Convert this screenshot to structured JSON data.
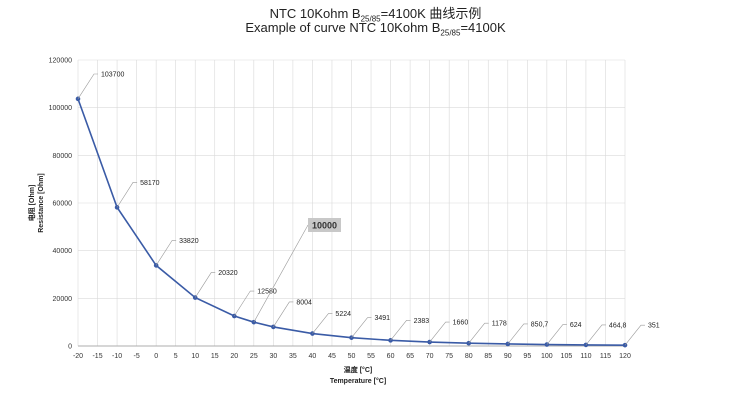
{
  "title": {
    "line1_prefix": "NTC 10Kohm B",
    "line1_sub": "25/85",
    "line1_suffix": "=4100K 曲线示例",
    "line2_prefix": "Example of curve NTC 10Kohm B",
    "line2_sub": "25/85",
    "line2_suffix": "=4100K"
  },
  "chart_data": {
    "type": "line",
    "xlabel_cn": "温度 [°C]",
    "xlabel": "Temperature [°C]",
    "ylabel_cn": "电阻 [Ohm]",
    "ylabel": "Resistance [Ohm]",
    "xlim": [
      -20,
      120
    ],
    "ylim": [
      0,
      120000
    ],
    "x_ticks": [
      -20,
      -15,
      -10,
      -5,
      0,
      5,
      10,
      15,
      20,
      25,
      30,
      35,
      40,
      45,
      50,
      55,
      60,
      65,
      70,
      75,
      80,
      85,
      90,
      95,
      100,
      105,
      110,
      115,
      120
    ],
    "y_ticks": [
      0,
      20000,
      40000,
      60000,
      80000,
      100000,
      120000
    ],
    "grid": true,
    "line_color": "#3a5ba6",
    "points": [
      {
        "x": -20,
        "y": 103700,
        "label": "103700"
      },
      {
        "x": -10,
        "y": 58170,
        "label": "58170"
      },
      {
        "x": 0,
        "y": 33820,
        "label": "33820"
      },
      {
        "x": 10,
        "y": 20320,
        "label": "20320"
      },
      {
        "x": 20,
        "y": 12580,
        "label": "12580"
      },
      {
        "x": 25,
        "y": 10000,
        "label": "10000"
      },
      {
        "x": 30,
        "y": 8004,
        "label": "8004"
      },
      {
        "x": 40,
        "y": 5224,
        "label": "5224"
      },
      {
        "x": 50,
        "y": 3491,
        "label": "3491"
      },
      {
        "x": 60,
        "y": 2383,
        "label": "2383"
      },
      {
        "x": 70,
        "y": 1660,
        "label": "1660"
      },
      {
        "x": 80,
        "y": 1178,
        "label": "1178"
      },
      {
        "x": 90,
        "y": 850.7,
        "label": "850,7"
      },
      {
        "x": 100,
        "y": 624,
        "label": "624"
      },
      {
        "x": 110,
        "y": 464.8,
        "label": "464,8"
      },
      {
        "x": 120,
        "y": 351,
        "label": "351"
      }
    ],
    "highlight_label": "10000"
  }
}
